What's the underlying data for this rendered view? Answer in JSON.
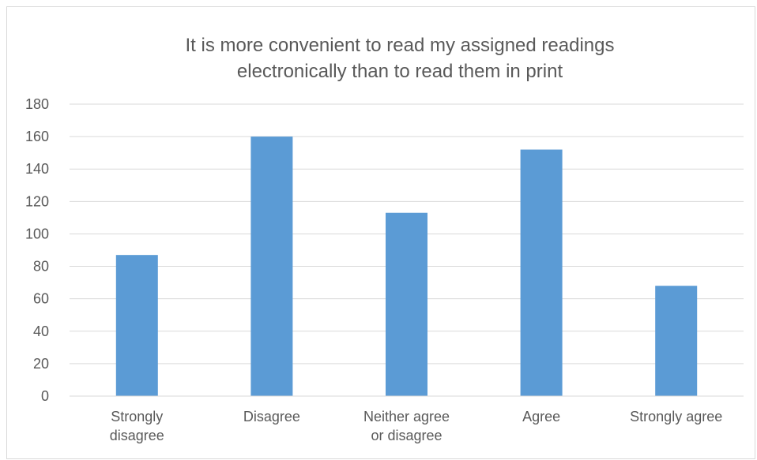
{
  "chart_data": {
    "type": "bar",
    "title_lines": [
      "It is more convenient to read my assigned readings",
      "electronically than to read them in print"
    ],
    "categories": [
      [
        "Strongly",
        "disagree"
      ],
      [
        "Disagree"
      ],
      [
        "Neither agree",
        "or disagree"
      ],
      [
        "Agree"
      ],
      [
        "Strongly agree"
      ]
    ],
    "values": [
      87,
      160,
      113,
      152,
      68
    ],
    "ylim": [
      0,
      180
    ],
    "yticks": [
      0,
      20,
      40,
      60,
      80,
      100,
      120,
      140,
      160,
      180
    ],
    "grid": true,
    "colors": {
      "bar": "#5B9BD5",
      "grid": "#d9d9d9",
      "axis": "#d9d9d9",
      "text": "#595959"
    }
  }
}
